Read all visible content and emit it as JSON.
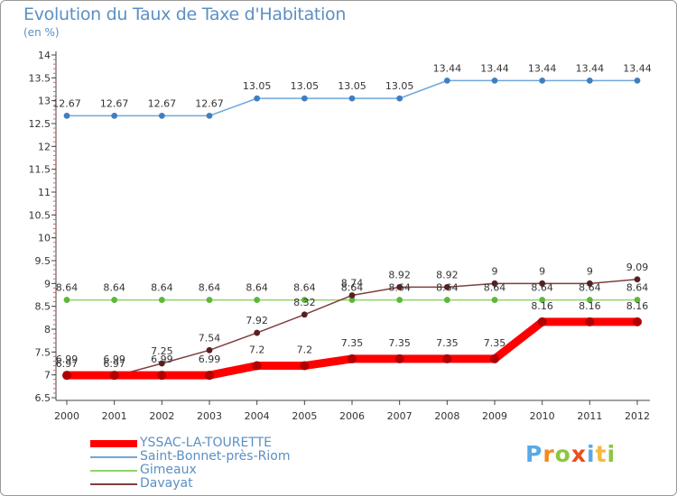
{
  "header": {
    "title": "Evolution du Taux de Taxe d'Habitation",
    "subtitle": "(en %)"
  },
  "logo": {
    "text": "Proxiti",
    "letters": [
      {
        "char": "P",
        "color": "#5aa9e6"
      },
      {
        "char": "r",
        "color": "#f08a24"
      },
      {
        "char": "o",
        "color": "#8cc63f"
      },
      {
        "char": "x",
        "color": "#e94e1b"
      },
      {
        "char": "i",
        "color": "#5aa9e6"
      },
      {
        "char": "t",
        "color": "#f6b93b"
      },
      {
        "char": "i",
        "color": "#8cc63f"
      }
    ]
  },
  "chart_data": {
    "type": "line",
    "title": "Evolution du Taux de Taxe d'Habitation",
    "ylabel": "(en %)",
    "xlabel": "",
    "categories": [
      "2000",
      "2001",
      "2002",
      "2003",
      "2004",
      "2005",
      "2006",
      "2007",
      "2008",
      "2009",
      "2010",
      "2011",
      "2012"
    ],
    "ylim": [
      6.5,
      14
    ],
    "yticks": [
      "6.5",
      "7",
      "7.5",
      "8",
      "8.5",
      "9",
      "9.5",
      "10",
      "10.5",
      "11",
      "11.5",
      "12",
      "12.5",
      "13",
      "13.5",
      "14"
    ],
    "grid": false,
    "legend_position": "bottom-left",
    "series": [
      {
        "name": "YSSAC-LA-TOURETTE",
        "color": "#ff0000",
        "emphasis": true,
        "values": [
          6.99,
          6.99,
          6.99,
          6.99,
          7.2,
          7.2,
          7.35,
          7.35,
          7.35,
          7.35,
          8.16,
          8.16,
          8.16
        ],
        "labels": [
          "6.99",
          "6.99",
          "6.99",
          "6.99",
          "7.2",
          "7.2",
          "7.35",
          "7.35",
          "7.35",
          "7.35",
          "8.16",
          "8.16",
          "8.16"
        ]
      },
      {
        "name": "Saint-Bonnet-près-Riom",
        "color": "#6fa8dc",
        "values": [
          12.67,
          12.67,
          12.67,
          12.67,
          13.05,
          13.05,
          13.05,
          13.05,
          13.44,
          13.44,
          13.44,
          13.44,
          13.44
        ],
        "labels": [
          "12.67",
          "12.67",
          "12.67",
          "12.67",
          "13.05",
          "13.05",
          "13.05",
          "13.05",
          "13.44",
          "13.44",
          "13.44",
          "13.44",
          "13.44"
        ]
      },
      {
        "name": "Gimeaux",
        "color": "#8fd46b",
        "values": [
          8.64,
          8.64,
          8.64,
          8.64,
          8.64,
          8.64,
          8.64,
          8.64,
          8.64,
          8.64,
          8.64,
          8.64,
          8.64
        ],
        "labels": [
          "8.64",
          "8.64",
          "8.64",
          "8.64",
          "8.64",
          "8.64",
          "8.64",
          "8.64",
          "8.64",
          "8.64",
          "8.64",
          "8.64",
          "8.64"
        ]
      },
      {
        "name": "Davayat",
        "color": "#7f3f3f",
        "values": [
          6.97,
          6.97,
          7.25,
          7.54,
          7.92,
          8.32,
          8.74,
          8.92,
          8.92,
          9,
          9,
          9,
          9.09
        ],
        "labels": [
          "6.97",
          "6.97",
          "7.25",
          "7.54",
          "7.92",
          "8.32",
          "8.74",
          "8.92",
          "8.92",
          "9",
          "9",
          "9",
          "9.09"
        ]
      }
    ]
  }
}
